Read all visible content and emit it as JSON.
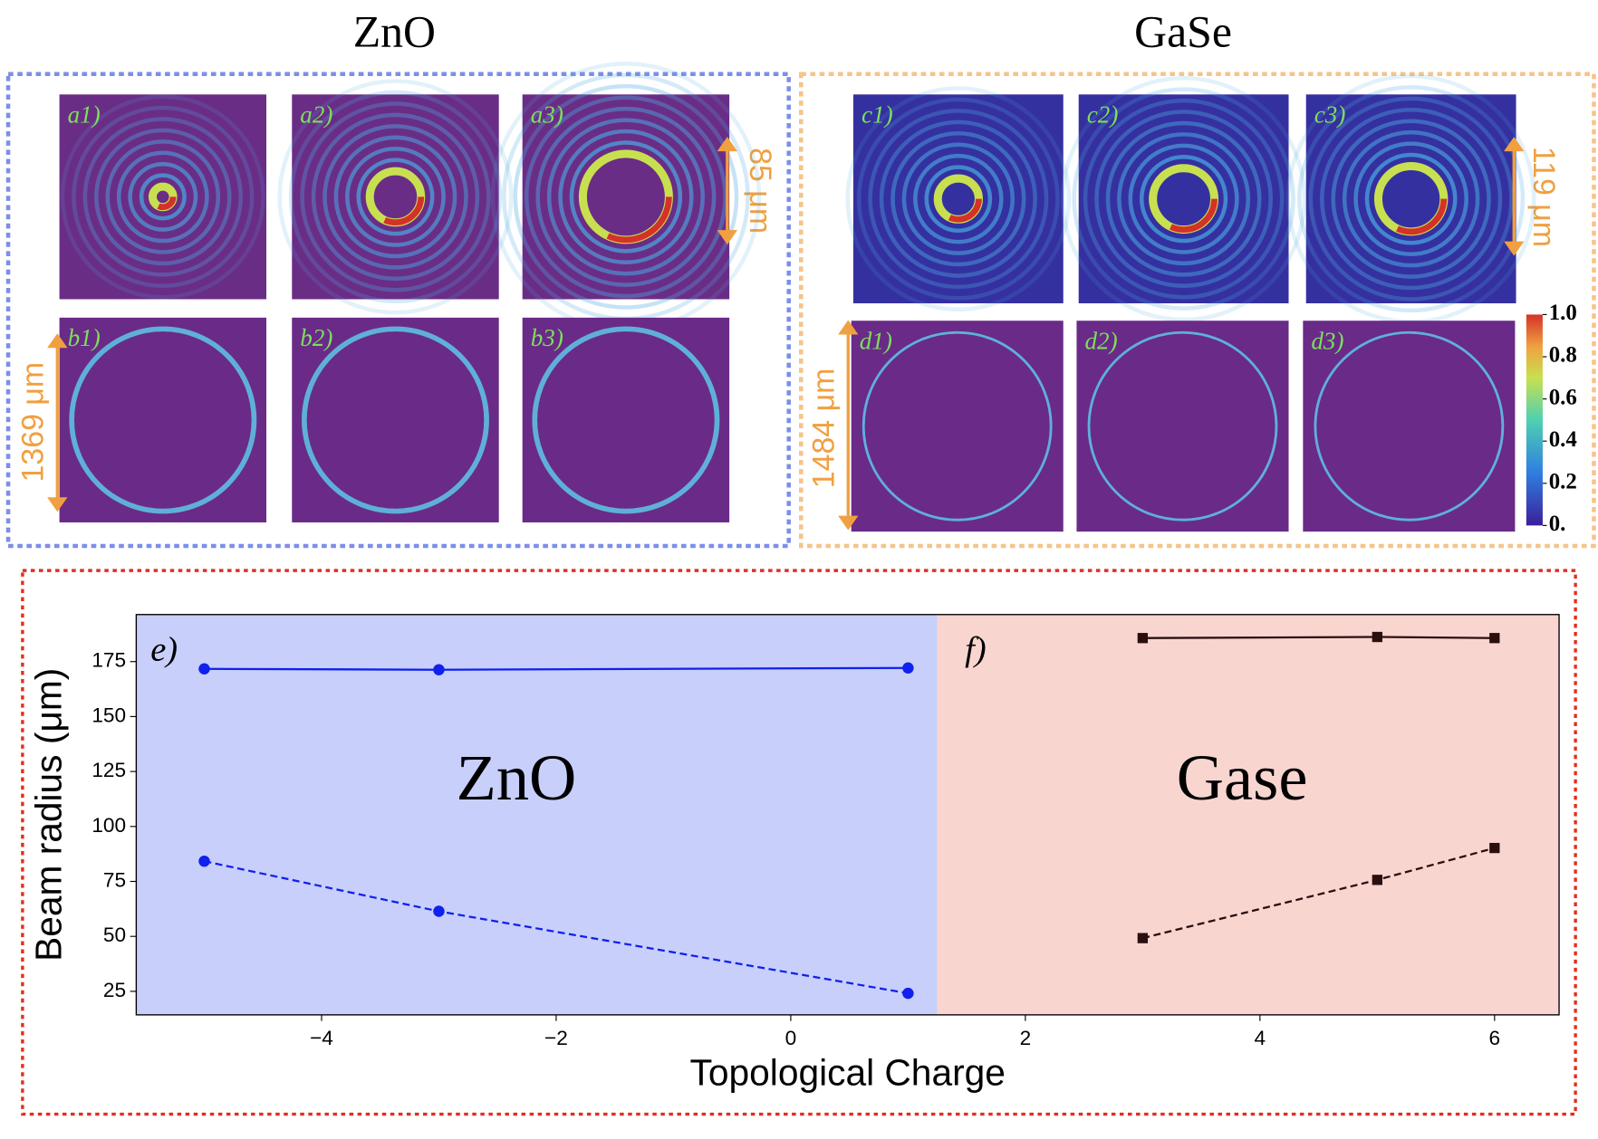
{
  "figure": {
    "headers": [
      "ZnO",
      "GaSe"
    ],
    "panel_labels": [
      [
        "a1)",
        "a2)",
        "a3)"
      ],
      [
        "b1)",
        "b2)",
        "b3)"
      ],
      [
        "c1)",
        "c2)",
        "c3)"
      ],
      [
        "d1)",
        "d2)",
        "d3)"
      ]
    ],
    "scale_labels": [
      "85 μm",
      "1369 μm",
      "119 μm",
      "1484 μm"
    ],
    "colorbar": {
      "ticks": [
        {
          "value": 1,
          "label": "1.0"
        },
        0.8,
        0.6,
        0.4,
        0.2,
        {
          "value": 0,
          "label": "0."
        }
      ]
    }
  },
  "chart_data": {
    "type": "line",
    "xlabel": "Topological Charge",
    "ylabel": "Beam radius (μm)",
    "xlim": [
      -5.58,
      6.55
    ],
    "ylim": [
      14.3,
      196.4
    ],
    "xticks": [
      {
        "value": -4,
        "label": "−4"
      },
      {
        "value": -2,
        "label": "−2"
      },
      0,
      2,
      4,
      6
    ],
    "yticks": [
      25,
      50,
      75,
      100,
      125,
      150,
      175
    ],
    "regions": [
      {
        "xlim": [
          -5.58,
          1.25
        ],
        "color": "#c8cffa",
        "label": "ZnO"
      },
      {
        "xlim": [
          1.25,
          6.55
        ],
        "color": "#f9d5d0",
        "label": "Gase"
      }
    ],
    "annotations": [
      "e)",
      "f)"
    ],
    "series": [
      {
        "x": [
          -5,
          -3,
          1
        ],
        "values": [
          171.7,
          171.3,
          172.1
        ],
        "color": "#1020ee",
        "dash": false,
        "marker": "circle"
      },
      {
        "x": [
          -5,
          -3,
          1
        ],
        "values": [
          84.2,
          61.4,
          24.1
        ],
        "color": "#1020ee",
        "dash": true,
        "marker": "circle"
      },
      {
        "x": [
          3,
          5,
          6
        ],
        "values": [
          185.7,
          186.2,
          185.7
        ],
        "color": "#2a0f0f",
        "dash": false,
        "marker": "square"
      },
      {
        "x": [
          3,
          5,
          6
        ],
        "values": [
          49.2,
          75.7,
          90.2
        ],
        "color": "#2a0f0f",
        "dash": true,
        "marker": "square"
      }
    ]
  }
}
